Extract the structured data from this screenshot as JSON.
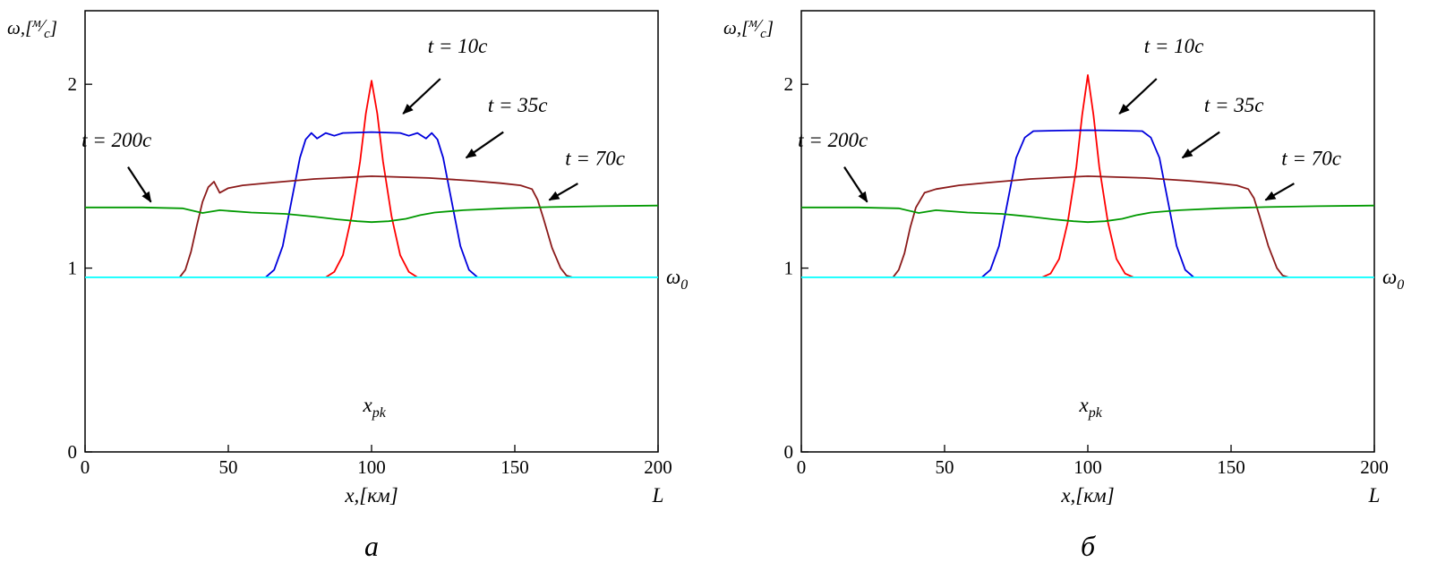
{
  "page": {
    "background": "#ffffff",
    "text_color": "#000000"
  },
  "chart_data": [
    {
      "type": "line",
      "caption": "а",
      "xlim": [
        0,
        200
      ],
      "ylim": [
        0,
        2.4
      ],
      "xticks": [
        0,
        50,
        100,
        150,
        200
      ],
      "yticks": [
        0,
        1,
        2
      ],
      "xlabel": "x,[км]",
      "ylabel": "ω,[м/с]",
      "ylabel_parts": {
        "prefix": "ω,[",
        "num": "м",
        "slash": "∕",
        "den": "с",
        "close": "]"
      },
      "corner_label": "L",
      "grid": false,
      "legend": "none",
      "labels": {
        "omega0": {
          "base": "ω",
          "sub": "0",
          "y": 0.95
        },
        "region": {
          "base": "x",
          "sub": "pk",
          "x": 101,
          "y": 0.22
        }
      },
      "annotations": [
        {
          "text": "t = 10с",
          "label_x": 130,
          "label_y": 2.17,
          "arrow": {
            "x1": 124,
            "y1": 2.03,
            "x2": 111,
            "y2": 1.84
          }
        },
        {
          "text": "t = 35с",
          "label_x": 151,
          "label_y": 1.85,
          "arrow": {
            "x1": 146,
            "y1": 1.74,
            "x2": 133,
            "y2": 1.6
          }
        },
        {
          "text": "t = 70с",
          "label_x": 178,
          "label_y": 1.56,
          "arrow": {
            "x1": 172,
            "y1": 1.46,
            "x2": 162,
            "y2": 1.37
          }
        },
        {
          "text": "t = 200с",
          "label_x": 11,
          "label_y": 1.66,
          "arrow": {
            "x1": 15,
            "y1": 1.55,
            "x2": 23,
            "y2": 1.36
          }
        }
      ],
      "series": [
        {
          "name": "t=10c",
          "color": "#ff0000",
          "points": [
            [
              84,
              0.95
            ],
            [
              87,
              0.98
            ],
            [
              90,
              1.07
            ],
            [
              93,
              1.28
            ],
            [
              96,
              1.58
            ],
            [
              98,
              1.84
            ],
            [
              100,
              2.02
            ],
            [
              102,
              1.84
            ],
            [
              104,
              1.58
            ],
            [
              107,
              1.28
            ],
            [
              110,
              1.07
            ],
            [
              113,
              0.98
            ],
            [
              116,
              0.95
            ]
          ]
        },
        {
          "name": "t=35c",
          "color": "#0000dd",
          "points": [
            [
              63,
              0.95
            ],
            [
              66,
              0.99
            ],
            [
              69,
              1.12
            ],
            [
              72,
              1.36
            ],
            [
              75,
              1.6
            ],
            [
              77,
              1.7
            ],
            [
              79,
              1.735
            ],
            [
              81,
              1.705
            ],
            [
              84,
              1.735
            ],
            [
              87,
              1.72
            ],
            [
              90,
              1.735
            ],
            [
              100,
              1.74
            ],
            [
              110,
              1.735
            ],
            [
              113,
              1.72
            ],
            [
              116,
              1.735
            ],
            [
              119,
              1.705
            ],
            [
              121,
              1.735
            ],
            [
              123,
              1.7
            ],
            [
              125,
              1.6
            ],
            [
              128,
              1.36
            ],
            [
              131,
              1.12
            ],
            [
              134,
              0.99
            ],
            [
              137,
              0.95
            ]
          ]
        },
        {
          "name": "t=70c",
          "color": "#8b1a1a",
          "points": [
            [
              33,
              0.95
            ],
            [
              35,
              0.99
            ],
            [
              37,
              1.09
            ],
            [
              39,
              1.23
            ],
            [
              41,
              1.36
            ],
            [
              43,
              1.44
            ],
            [
              45,
              1.47
            ],
            [
              47,
              1.41
            ],
            [
              50,
              1.435
            ],
            [
              55,
              1.45
            ],
            [
              65,
              1.465
            ],
            [
              80,
              1.485
            ],
            [
              100,
              1.5
            ],
            [
              120,
              1.49
            ],
            [
              135,
              1.475
            ],
            [
              145,
              1.462
            ],
            [
              152,
              1.45
            ],
            [
              156,
              1.43
            ],
            [
              158,
              1.37
            ],
            [
              160,
              1.27
            ],
            [
              163,
              1.11
            ],
            [
              166,
              1.0
            ],
            [
              168,
              0.96
            ],
            [
              170,
              0.95
            ]
          ]
        },
        {
          "name": "t=200c",
          "color": "#009900",
          "points": [
            [
              0,
              1.33
            ],
            [
              20,
              1.33
            ],
            [
              34,
              1.325
            ],
            [
              41,
              1.3
            ],
            [
              47,
              1.315
            ],
            [
              58,
              1.302
            ],
            [
              70,
              1.295
            ],
            [
              80,
              1.28
            ],
            [
              88,
              1.265
            ],
            [
              95,
              1.255
            ],
            [
              100,
              1.25
            ],
            [
              106,
              1.255
            ],
            [
              112,
              1.268
            ],
            [
              117,
              1.288
            ],
            [
              122,
              1.302
            ],
            [
              132,
              1.315
            ],
            [
              146,
              1.325
            ],
            [
              162,
              1.332
            ],
            [
              180,
              1.337
            ],
            [
              200,
              1.34
            ]
          ]
        },
        {
          "name": "omega0",
          "color": "#00ffff",
          "points": [
            [
              0,
              0.95
            ],
            [
              200,
              0.95
            ]
          ]
        }
      ]
    },
    {
      "type": "line",
      "caption": "б",
      "xlim": [
        0,
        200
      ],
      "ylim": [
        0,
        2.4
      ],
      "xticks": [
        0,
        50,
        100,
        150,
        200
      ],
      "yticks": [
        0,
        1,
        2
      ],
      "xlabel": "x,[км]",
      "ylabel": "ω,[м/с]",
      "ylabel_parts": {
        "prefix": "ω,[",
        "num": "м",
        "slash": "∕",
        "den": "с",
        "close": "]"
      },
      "corner_label": "L",
      "grid": false,
      "legend": "none",
      "labels": {
        "omega0": {
          "base": "ω",
          "sub": "0",
          "y": 0.95
        },
        "region": {
          "base": "x",
          "sub": "pk",
          "x": 101,
          "y": 0.22
        }
      },
      "annotations": [
        {
          "text": "t = 10с",
          "label_x": 130,
          "label_y": 2.17,
          "arrow": {
            "x1": 124,
            "y1": 2.03,
            "x2": 111,
            "y2": 1.84
          }
        },
        {
          "text": "t = 35с",
          "label_x": 151,
          "label_y": 1.85,
          "arrow": {
            "x1": 146,
            "y1": 1.74,
            "x2": 133,
            "y2": 1.6
          }
        },
        {
          "text": "t = 70с",
          "label_x": 178,
          "label_y": 1.56,
          "arrow": {
            "x1": 172,
            "y1": 1.46,
            "x2": 162,
            "y2": 1.37
          }
        },
        {
          "text": "t = 200с",
          "label_x": 11,
          "label_y": 1.66,
          "arrow": {
            "x1": 15,
            "y1": 1.55,
            "x2": 23,
            "y2": 1.36
          }
        }
      ],
      "series": [
        {
          "name": "t=10c",
          "color": "#ff0000",
          "points": [
            [
              84,
              0.95
            ],
            [
              87,
              0.97
            ],
            [
              90,
              1.05
            ],
            [
              93,
              1.25
            ],
            [
              96,
              1.55
            ],
            [
              98,
              1.83
            ],
            [
              100,
              2.05
            ],
            [
              102,
              1.83
            ],
            [
              104,
              1.55
            ],
            [
              107,
              1.25
            ],
            [
              110,
              1.05
            ],
            [
              113,
              0.97
            ],
            [
              116,
              0.95
            ]
          ]
        },
        {
          "name": "t=35c",
          "color": "#0000dd",
          "points": [
            [
              63,
              0.95
            ],
            [
              66,
              0.99
            ],
            [
              69,
              1.12
            ],
            [
              72,
              1.36
            ],
            [
              75,
              1.6
            ],
            [
              78,
              1.71
            ],
            [
              81,
              1.745
            ],
            [
              90,
              1.748
            ],
            [
              100,
              1.75
            ],
            [
              110,
              1.748
            ],
            [
              119,
              1.745
            ],
            [
              122,
              1.71
            ],
            [
              125,
              1.6
            ],
            [
              128,
              1.36
            ],
            [
              131,
              1.12
            ],
            [
              134,
              0.99
            ],
            [
              137,
              0.95
            ]
          ]
        },
        {
          "name": "t=70c",
          "color": "#8b1a1a",
          "points": [
            [
              32,
              0.95
            ],
            [
              34,
              0.99
            ],
            [
              36,
              1.08
            ],
            [
              38,
              1.22
            ],
            [
              40,
              1.33
            ],
            [
              43,
              1.41
            ],
            [
              47,
              1.43
            ],
            [
              55,
              1.45
            ],
            [
              65,
              1.465
            ],
            [
              80,
              1.485
            ],
            [
              100,
              1.5
            ],
            [
              120,
              1.49
            ],
            [
              135,
              1.475
            ],
            [
              145,
              1.462
            ],
            [
              152,
              1.45
            ],
            [
              156,
              1.43
            ],
            [
              158,
              1.38
            ],
            [
              160,
              1.28
            ],
            [
              163,
              1.12
            ],
            [
              166,
              1.0
            ],
            [
              168,
              0.96
            ],
            [
              170,
              0.95
            ]
          ]
        },
        {
          "name": "t=200c",
          "color": "#009900",
          "points": [
            [
              0,
              1.33
            ],
            [
              20,
              1.33
            ],
            [
              34,
              1.325
            ],
            [
              41,
              1.3
            ],
            [
              47,
              1.315
            ],
            [
              58,
              1.302
            ],
            [
              70,
              1.295
            ],
            [
              80,
              1.28
            ],
            [
              88,
              1.265
            ],
            [
              95,
              1.255
            ],
            [
              100,
              1.25
            ],
            [
              106,
              1.255
            ],
            [
              112,
              1.268
            ],
            [
              117,
              1.288
            ],
            [
              122,
              1.302
            ],
            [
              132,
              1.315
            ],
            [
              146,
              1.325
            ],
            [
              162,
              1.332
            ],
            [
              180,
              1.337
            ],
            [
              200,
              1.34
            ]
          ]
        },
        {
          "name": "omega0",
          "color": "#00ffff",
          "points": [
            [
              0,
              0.95
            ],
            [
              200,
              0.95
            ]
          ]
        }
      ]
    }
  ]
}
